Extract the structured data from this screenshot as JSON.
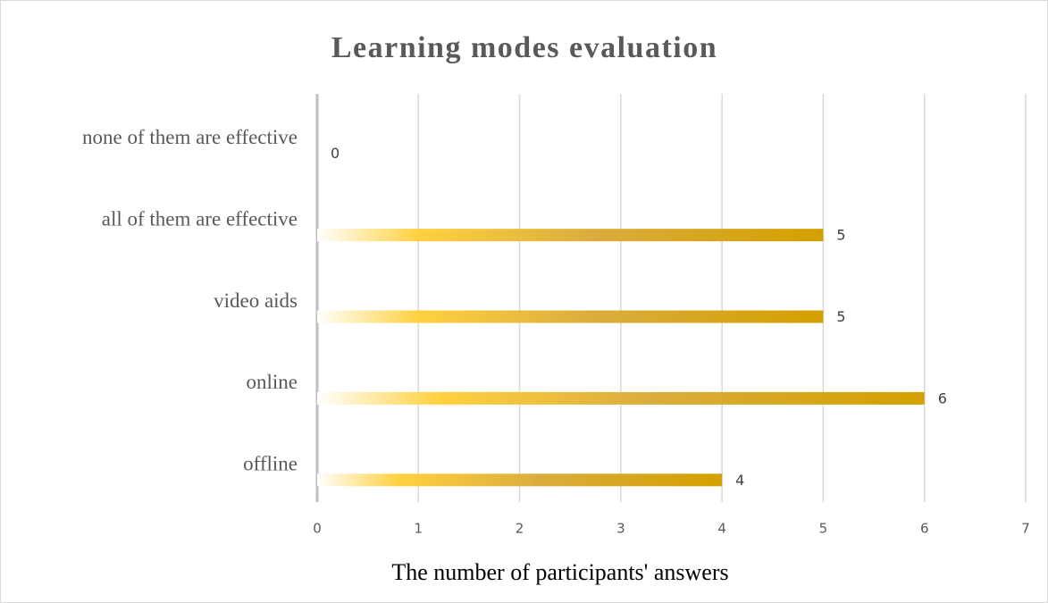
{
  "chart_data": {
    "type": "bar",
    "orientation": "horizontal",
    "title": "Learning modes evaluation",
    "x_label": "The number of participants' answers",
    "categories": [
      "none of them are effective",
      "all of them are effective",
      "video aids",
      "online",
      "offline"
    ],
    "values": [
      0,
      5,
      5,
      6,
      4
    ],
    "color": "#d4a000",
    "xlim": [
      0,
      7
    ],
    "xticks": [
      0,
      1,
      2,
      3,
      4,
      5,
      6,
      7
    ],
    "grid": true
  }
}
